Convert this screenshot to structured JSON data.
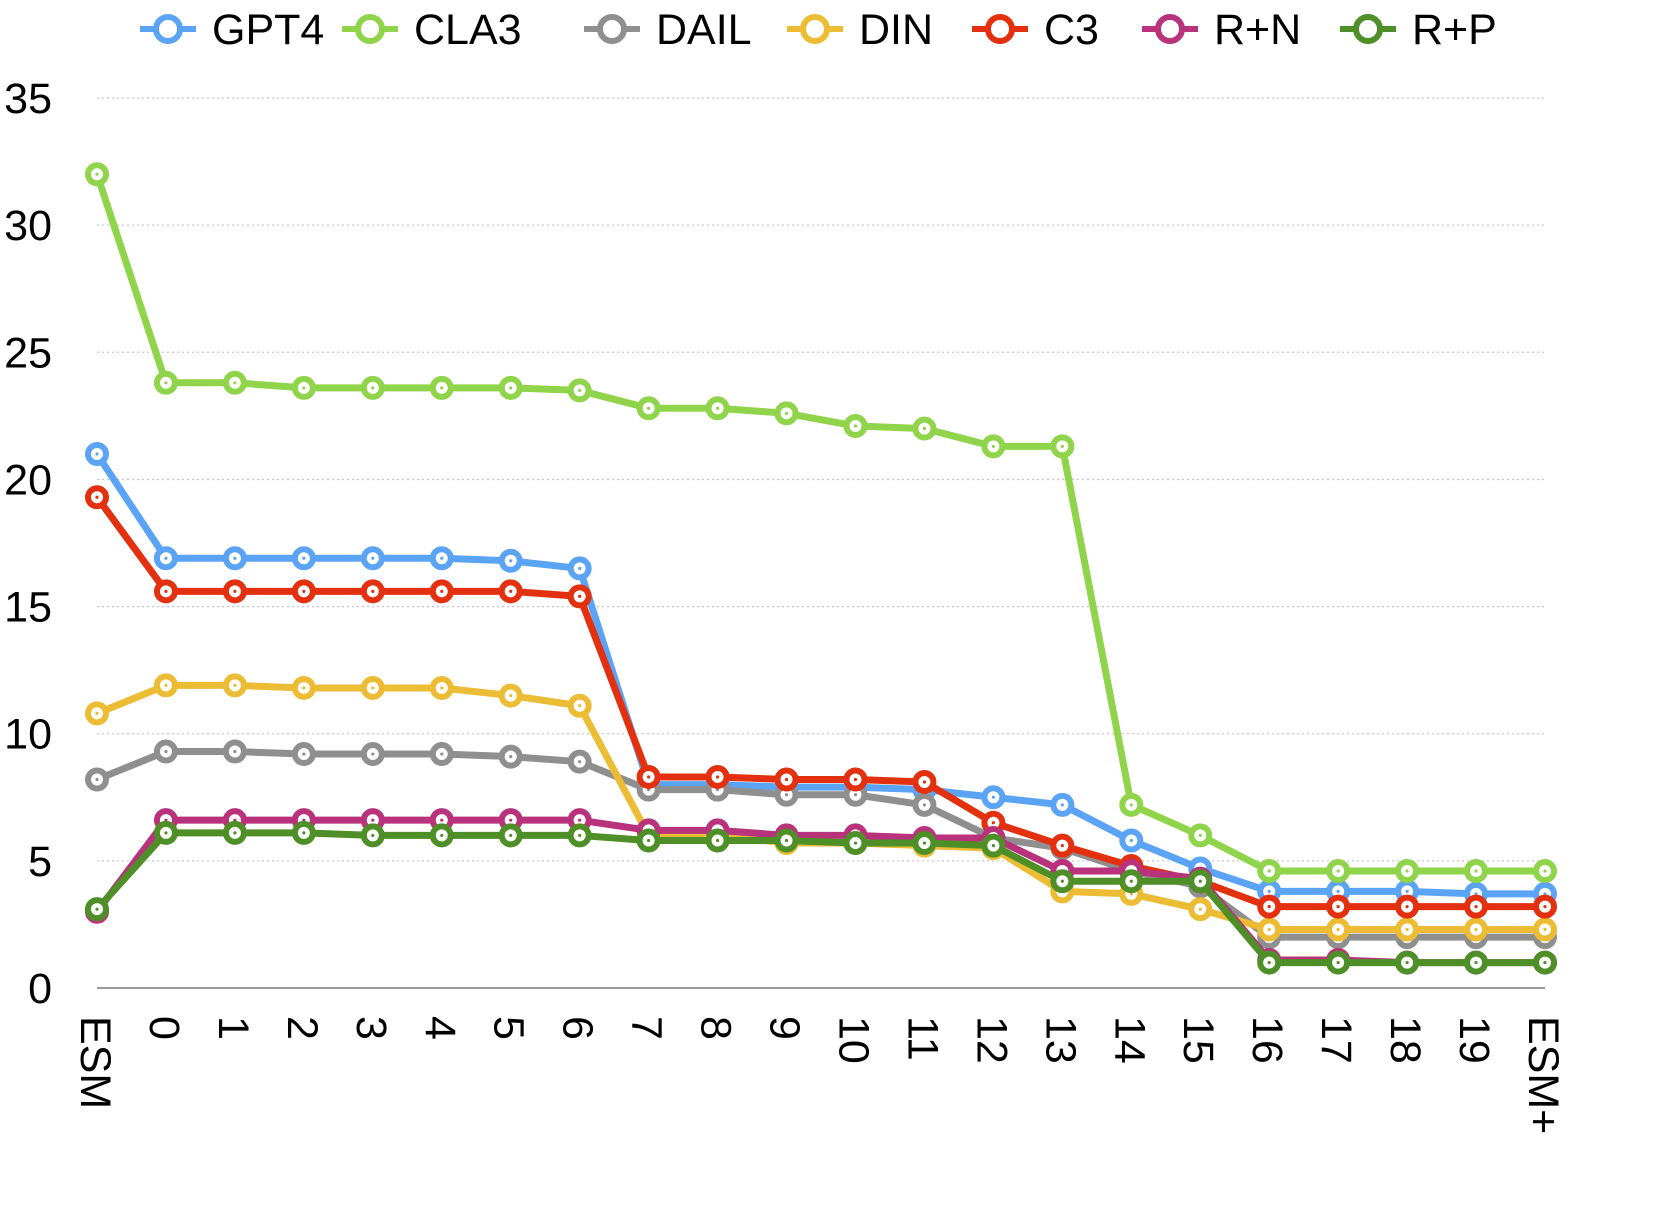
{
  "chart_data": {
    "type": "line",
    "categories": [
      "ESM",
      "0",
      "1",
      "2",
      "3",
      "4",
      "5",
      "6",
      "7",
      "8",
      "9",
      "10",
      "11",
      "12",
      "13",
      "14",
      "15",
      "16",
      "17",
      "18",
      "19",
      "ESM+"
    ],
    "yticks": [
      "0",
      "5",
      "10",
      "15",
      "20",
      "25",
      "30",
      "35"
    ],
    "ylim": [
      0,
      35
    ],
    "grid": true,
    "legend_position": "top",
    "series": [
      {
        "name": "GPT4",
        "color": "#5ba4f5",
        "values": [
          21.0,
          16.9,
          16.9,
          16.9,
          16.9,
          16.9,
          16.8,
          16.5,
          8.0,
          8.0,
          7.9,
          7.9,
          7.8,
          7.5,
          7.2,
          5.8,
          4.7,
          3.8,
          3.8,
          3.8,
          3.7,
          3.7
        ]
      },
      {
        "name": "CLA3",
        "color": "#8fd44a",
        "values": [
          32.0,
          23.8,
          23.8,
          23.6,
          23.6,
          23.6,
          23.6,
          23.5,
          22.8,
          22.8,
          22.6,
          22.1,
          22.0,
          21.3,
          21.3,
          7.2,
          6.0,
          4.6,
          4.6,
          4.6,
          4.6,
          4.6
        ]
      },
      {
        "name": "DAIL",
        "color": "#8f8f8f",
        "values": [
          8.2,
          9.3,
          9.3,
          9.2,
          9.2,
          9.2,
          9.1,
          8.9,
          7.8,
          7.8,
          7.6,
          7.6,
          7.2,
          5.9,
          5.5,
          4.6,
          4.0,
          2.0,
          2.0,
          2.0,
          2.0,
          2.0
        ]
      },
      {
        "name": "DIN",
        "color": "#ecbc35",
        "values": [
          10.8,
          11.9,
          11.9,
          11.8,
          11.8,
          11.8,
          11.5,
          11.1,
          6.0,
          6.0,
          5.7,
          5.7,
          5.6,
          5.5,
          3.8,
          3.7,
          3.1,
          2.3,
          2.3,
          2.3,
          2.3,
          2.3
        ]
      },
      {
        "name": "C3",
        "color": "#e3300e",
        "values": [
          19.3,
          15.6,
          15.6,
          15.6,
          15.6,
          15.6,
          15.6,
          15.4,
          8.3,
          8.3,
          8.2,
          8.2,
          8.1,
          6.5,
          5.6,
          4.8,
          4.2,
          3.2,
          3.2,
          3.2,
          3.2,
          3.2
        ]
      },
      {
        "name": "R+N",
        "color": "#b8327c",
        "values": [
          3.0,
          6.6,
          6.6,
          6.6,
          6.6,
          6.6,
          6.6,
          6.6,
          6.2,
          6.2,
          6.0,
          6.0,
          5.9,
          5.9,
          4.6,
          4.6,
          4.3,
          1.1,
          1.1,
          1.0,
          1.0,
          1.0
        ]
      },
      {
        "name": "R+P",
        "color": "#4f8f27",
        "values": [
          3.1,
          6.1,
          6.1,
          6.1,
          6.0,
          6.0,
          6.0,
          6.0,
          5.8,
          5.8,
          5.8,
          5.7,
          5.7,
          5.6,
          4.2,
          4.2,
          4.2,
          1.0,
          1.0,
          1.0,
          1.0,
          1.0
        ]
      }
    ]
  }
}
